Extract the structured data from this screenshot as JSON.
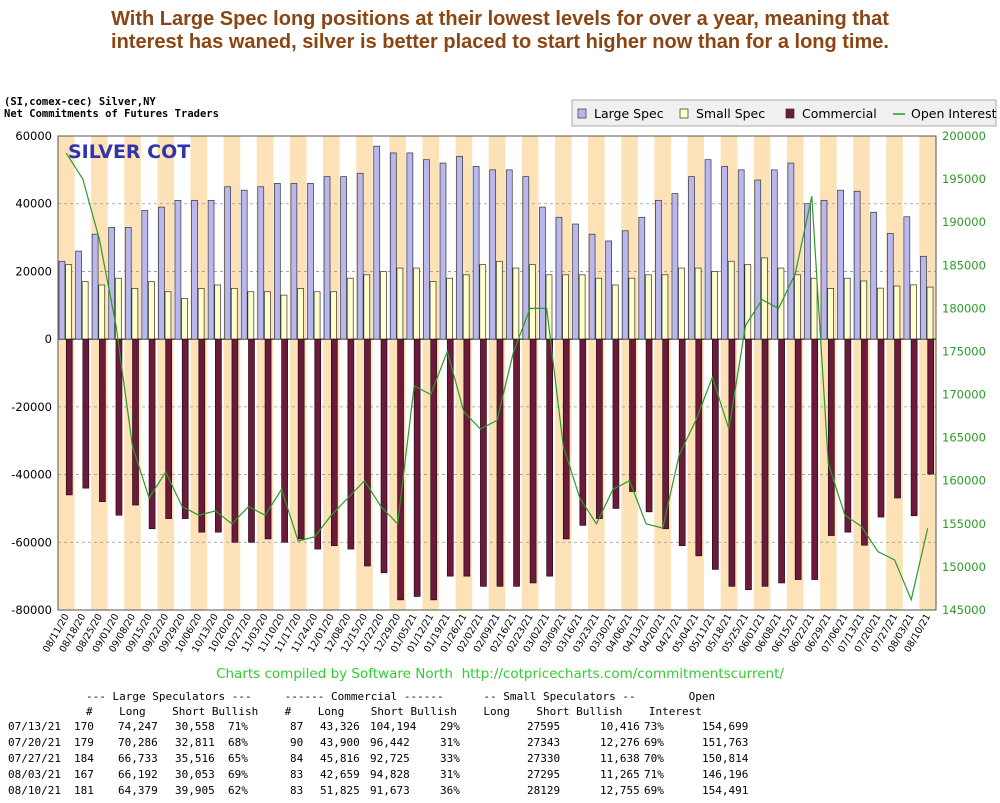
{
  "headline": {
    "line1": "With Large Spec long positions at their lowest levels for over a year, meaning that",
    "line2": "interest has waned, silver is better placed to start higher now than for a long time."
  },
  "subtitle": {
    "line1": "(SI,comex-cec) Silver,NY",
    "line2": "Net Commitments of Futures Traders"
  },
  "colors": {
    "large_spec": "#b8b8ee",
    "small_spec": "#ffffcc",
    "commercial": "#6b1a3a",
    "open_interest": "#2a9a2a",
    "band": "#fde2b8",
    "headline": "#8b4513",
    "credit": "#33cc33",
    "watermark": "#3333aa"
  },
  "chart_data": {
    "type": "bar",
    "title": "SILVER COT",
    "legend_position": "top-right",
    "legend": [
      "Large Spec",
      "Small Spec",
      "Commercial",
      "Open Interest"
    ],
    "categories": [
      "08/11/20",
      "08/18/20",
      "08/25/20",
      "09/01/20",
      "09/08/20",
      "09/15/20",
      "09/22/20",
      "09/29/20",
      "10/06/20",
      "10/13/20",
      "10/20/20",
      "10/27/20",
      "11/03/20",
      "11/10/20",
      "11/17/20",
      "11/24/20",
      "12/01/20",
      "12/08/20",
      "12/15/20",
      "12/22/20",
      "12/29/20",
      "01/05/21",
      "01/12/21",
      "01/19/21",
      "01/26/21",
      "02/02/21",
      "02/09/21",
      "02/16/21",
      "02/23/21",
      "03/02/21",
      "03/09/21",
      "03/16/21",
      "03/23/21",
      "03/30/21",
      "04/06/21",
      "04/13/21",
      "04/20/21",
      "04/27/21",
      "05/04/21",
      "05/11/21",
      "05/18/21",
      "05/25/21",
      "06/01/21",
      "06/08/21",
      "06/15/21",
      "06/22/21",
      "06/29/21",
      "07/06/21",
      "07/13/21",
      "07/20/21",
      "07/27/21",
      "08/03/21",
      "08/10/21"
    ],
    "x_tick_labels": [
      "08/11/20",
      "08/18/20",
      "08/25/20",
      "09/01/20",
      "09/08/20",
      "09/15/20",
      "09/22/20",
      "09/29/20",
      "10/06/20",
      "10/13/20",
      "10/20/20",
      "10/27/20",
      "11/03/20",
      "11/10/20",
      "11/17/20",
      "11/24/20",
      "12/01/20",
      "12/08/20",
      "12/15/20",
      "12/22/20",
      "12/29/20",
      "01/05/21",
      "01/12/21",
      "01/19/21",
      "01/26/21",
      "02/02/21",
      "02/09/21",
      "02/16/21",
      "02/23/21",
      "03/02/21",
      "03/09/21",
      "03/16/21",
      "03/23/21",
      "03/30/21",
      "04/06/21",
      "04/13/21",
      "04/20/21",
      "04/27/21",
      "05/04/21",
      "05/11/21",
      "05/18/21",
      "05/25/21",
      "06/01/21",
      "06/08/21",
      "06/15/21",
      "06/22/21",
      "06/29/21",
      "07/06/21",
      "07/13/21",
      "07/20/21",
      "07/27/21",
      "08/03/21",
      "08/10/21"
    ],
    "ylim": [
      -80000,
      60000
    ],
    "y_ticks": [
      -80000,
      -60000,
      -40000,
      -20000,
      0,
      20000,
      40000,
      60000
    ],
    "y2lim": [
      145000,
      200000
    ],
    "y2_ticks": [
      145000,
      150000,
      155000,
      160000,
      165000,
      170000,
      175000,
      180000,
      185000,
      190000,
      195000,
      200000
    ],
    "series": [
      {
        "name": "Large Spec",
        "values": [
          23000,
          26000,
          31000,
          33000,
          33000,
          38000,
          39000,
          41000,
          41000,
          41000,
          45000,
          44000,
          45000,
          46000,
          46000,
          46000,
          48000,
          48000,
          49000,
          57000,
          55000,
          55000,
          53000,
          52000,
          54000,
          51000,
          50000,
          50000,
          48000,
          39000,
          36000,
          34000,
          31000,
          29000,
          32000,
          36000,
          41000,
          43000,
          48000,
          53000,
          51000,
          50000,
          47000,
          50000,
          52000,
          40000,
          41000,
          44000,
          43689,
          37475,
          31217,
          36139,
          24474
        ]
      },
      {
        "name": "Small Spec",
        "values": [
          22000,
          17000,
          16000,
          18000,
          15000,
          17000,
          14000,
          12000,
          15000,
          16000,
          15000,
          14000,
          14000,
          13000,
          15000,
          14000,
          14000,
          18000,
          19000,
          20000,
          21000,
          21000,
          17000,
          18000,
          19000,
          22000,
          23000,
          21000,
          22000,
          19000,
          19000,
          19000,
          18000,
          16000,
          18000,
          19000,
          19000,
          21000,
          21000,
          20000,
          23000,
          22000,
          24000,
          21000,
          19000,
          18000,
          15000,
          18000,
          17179,
          15067,
          15692,
          16030,
          15374
        ]
      },
      {
        "name": "Commercial",
        "values": [
          -46000,
          -44000,
          -48000,
          -52000,
          -49000,
          -56000,
          -53000,
          -53000,
          -57000,
          -57000,
          -60000,
          -60000,
          -59000,
          -60000,
          -59000,
          -62000,
          -61000,
          -62000,
          -67000,
          -69000,
          -77000,
          -76000,
          -77000,
          -70000,
          -70000,
          -73000,
          -73000,
          -73000,
          -72000,
          -70000,
          -59000,
          -55000,
          -53000,
          -50000,
          -45000,
          -51000,
          -56000,
          -61000,
          -64000,
          -68000,
          -73000,
          -74000,
          -73000,
          -72000,
          -71000,
          -71000,
          -58000,
          -57000,
          -60868,
          -52542,
          -46909,
          -52169,
          -39848
        ]
      },
      {
        "name": "Open Interest",
        "values": [
          198000,
          195000,
          188000,
          178000,
          164000,
          158000,
          161000,
          157000,
          156000,
          156500,
          155000,
          157000,
          156000,
          159000,
          153000,
          153500,
          156000,
          158000,
          160000,
          157000,
          155000,
          171000,
          170000,
          175000,
          168000,
          166000,
          167000,
          175000,
          180000,
          180000,
          164000,
          158000,
          155000,
          159000,
          160000,
          155000,
          154500,
          163000,
          167000,
          172000,
          166000,
          178000,
          181000,
          180000,
          184000,
          193000,
          162000,
          156000,
          154699,
          151763,
          150814,
          146196,
          154491
        ]
      }
    ]
  },
  "credit": "Charts compiled by Software North  http://cotpricecharts.com/commitmentscurrent/",
  "table": {
    "group_header": "--- Large Speculators ---     ------ Commercial ------      -- Small Speculators --        Open",
    "col_header": "#    Long    Short Bullish    #    Long    Short Bullish    Long    Short Bullish    Interest",
    "rows": [
      [
        "07/13/21",
        "170",
        "74,247",
        "30,558",
        "71%",
        "87",
        "43,326",
        "104,194",
        "29%",
        "27595",
        "10,416",
        "73%",
        "154,699"
      ],
      [
        "07/20/21",
        "179",
        "70,286",
        "32,811",
        "68%",
        "90",
        "43,900",
        "96,442",
        "31%",
        "27343",
        "12,276",
        "69%",
        "151,763"
      ],
      [
        "07/27/21",
        "184",
        "66,733",
        "35,516",
        "65%",
        "84",
        "45,816",
        "92,725",
        "33%",
        "27330",
        "11,638",
        "70%",
        "150,814"
      ],
      [
        "08/03/21",
        "167",
        "66,192",
        "30,053",
        "69%",
        "83",
        "42,659",
        "94,828",
        "31%",
        "27295",
        "11,265",
        "71%",
        "146,196"
      ],
      [
        "08/10/21",
        "181",
        "64,379",
        "39,905",
        "62%",
        "83",
        "51,825",
        "91,673",
        "36%",
        "28129",
        "12,755",
        "69%",
        "154,491"
      ]
    ]
  }
}
